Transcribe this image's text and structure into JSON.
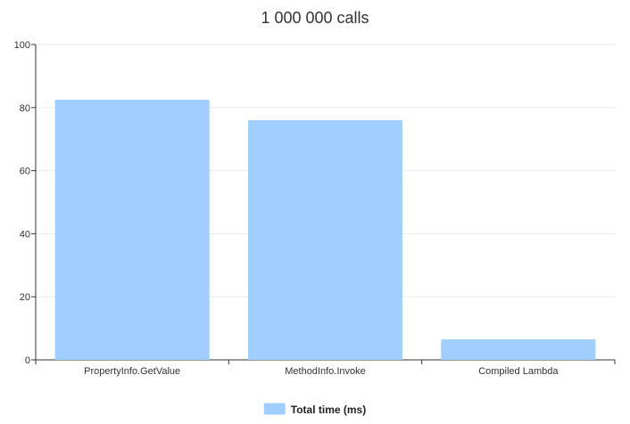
{
  "chart_data": {
    "type": "bar",
    "title": "1 000 000 calls",
    "categories": [
      "PropertyInfo.GetValue",
      "MethodInfo.Invoke",
      "Compiled Lambda"
    ],
    "series": [
      {
        "name": "Total time (ms)",
        "values": [
          82.5,
          76,
          6.5
        ],
        "color": "#a0cfff"
      }
    ],
    "ylim": [
      0,
      100
    ],
    "yticks": [
      0,
      20,
      40,
      60,
      80,
      100
    ],
    "grid": true,
    "legend": "bottom-center"
  },
  "colors": {
    "grid": "#ebebeb",
    "axis": "#333333"
  }
}
